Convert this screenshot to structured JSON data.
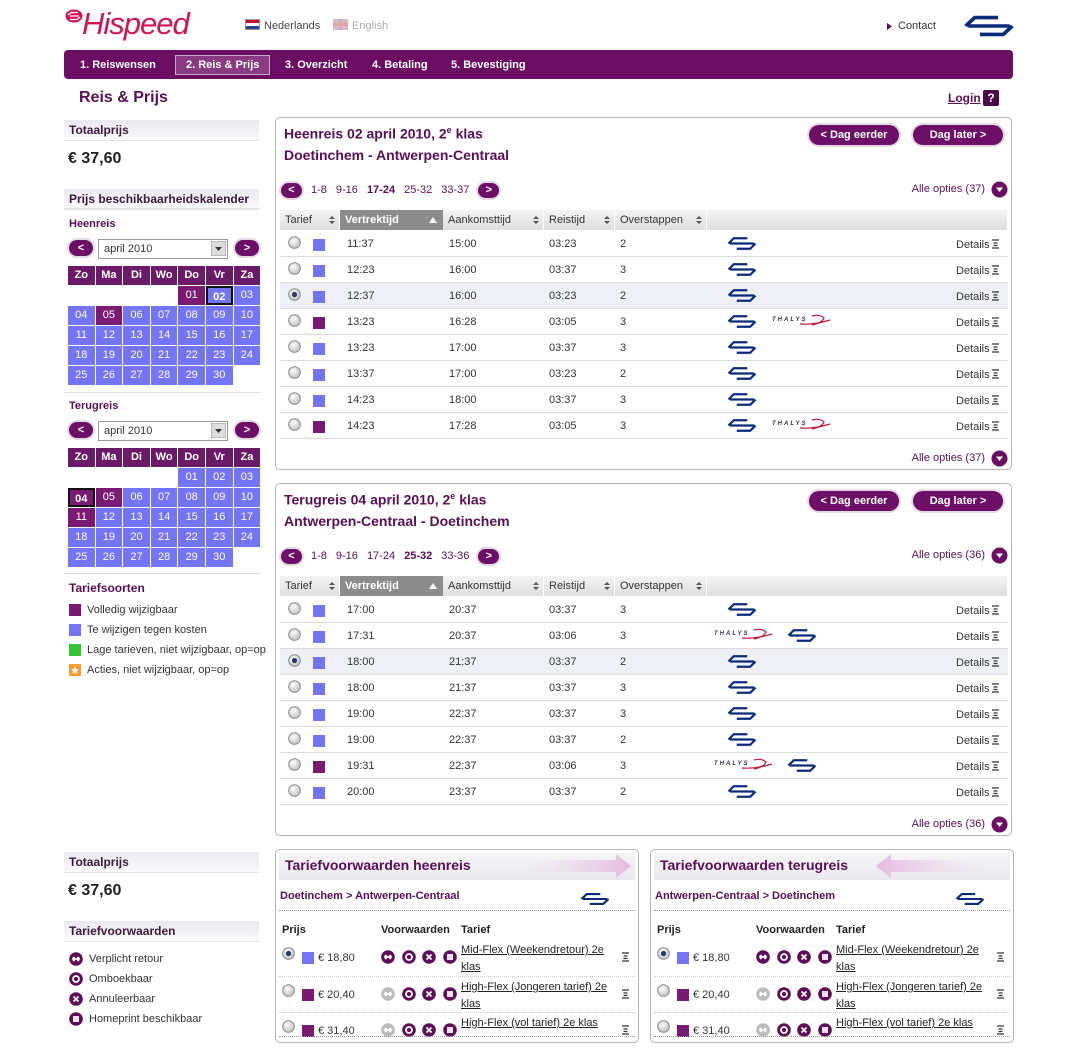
{
  "header": {
    "logo": "Hispeed",
    "languages": [
      "Nederlands",
      "English"
    ],
    "contact": "Contact"
  },
  "steps": {
    "items": [
      "1. Reiswensen",
      "2. Reis & Prijs",
      "3. Overzicht",
      "4. Betaling",
      "5. Bevestiging"
    ],
    "active": 1
  },
  "page_title": "Reis & Prijs",
  "login": "Login",
  "help": "?",
  "tariff_colors": {
    "full": "#7a1a72",
    "flex": "#7474f6",
    "low": "#33c433",
    "promo": "#ff9a2e"
  },
  "ui": {
    "prev": "<",
    "next": ">",
    "earlier": "< Dag eerder",
    "later": "Dag later >",
    "details": "Details",
    "thalys": "THALYS",
    "columns": [
      "Tarief",
      "Vertrektijd",
      "Aankomsttijd",
      "Reistijd",
      "Overstappen"
    ],
    "sorted_column": 1,
    "condition_columns": [
      "Prijs",
      "Voorwaarden",
      "Tarief"
    ]
  },
  "sidebar": {
    "total_label": "Totaalprijs",
    "total": "€ 37,60",
    "calendar_title": "Prijs beschikbaarheidskalender",
    "weekdays": [
      "Zo",
      "Ma",
      "Di",
      "Wo",
      "Do",
      "Vr",
      "Za"
    ],
    "calendars": [
      {
        "label": "Heenreis",
        "month": "april 2010",
        "weeks": [
          [
            null,
            null,
            null,
            null,
            "01",
            "02",
            "03"
          ],
          [
            "04",
            "05",
            "06",
            "07",
            "08",
            "09",
            "10"
          ],
          [
            "11",
            "12",
            "13",
            "14",
            "15",
            "16",
            "17"
          ],
          [
            "18",
            "19",
            "20",
            "21",
            "22",
            "23",
            "24"
          ],
          [
            "25",
            "26",
            "27",
            "28",
            "29",
            "30",
            null
          ]
        ],
        "kinds": [
          [
            null,
            null,
            null,
            null,
            "full",
            "flex-selected",
            "flex"
          ],
          [
            "flex",
            "full",
            "flex",
            "flex",
            "flex",
            "flex",
            "flex"
          ],
          [
            "flex",
            "flex",
            "flex",
            "flex",
            "flex",
            "flex",
            "flex"
          ],
          [
            "flex",
            "flex",
            "flex",
            "flex",
            "flex",
            "flex",
            "flex"
          ],
          [
            "flex",
            "flex",
            "flex",
            "flex",
            "flex",
            "flex",
            null
          ]
        ]
      },
      {
        "label": "Terugreis",
        "month": "april 2010",
        "weeks": [
          [
            null,
            null,
            null,
            null,
            "01",
            "02",
            "03"
          ],
          [
            "04",
            "05",
            "06",
            "07",
            "08",
            "09",
            "10"
          ],
          [
            "11",
            "12",
            "13",
            "14",
            "15",
            "16",
            "17"
          ],
          [
            "18",
            "19",
            "20",
            "21",
            "22",
            "23",
            "24"
          ],
          [
            "25",
            "26",
            "27",
            "28",
            "29",
            "30",
            null
          ]
        ],
        "kinds": [
          [
            null,
            null,
            null,
            null,
            "flex",
            "flex",
            "flex"
          ],
          [
            "full-selected",
            "full",
            "flex",
            "flex",
            "flex",
            "flex",
            "flex"
          ],
          [
            "full",
            "flex",
            "flex",
            "flex",
            "flex",
            "flex",
            "flex"
          ],
          [
            "flex",
            "flex",
            "flex",
            "flex",
            "flex",
            "flex",
            "flex"
          ],
          [
            "flex",
            "flex",
            "flex",
            "flex",
            "flex",
            "flex",
            null
          ]
        ]
      }
    ],
    "tariff_types_title": "Tariefsoorten",
    "tariff_types": [
      {
        "label": "Volledig wijzigbaar",
        "kind": "full"
      },
      {
        "label": "Te wijzigen tegen kosten",
        "kind": "flex"
      },
      {
        "label": "Lage tarieven, niet wijzigbaar, op=op",
        "kind": "low"
      },
      {
        "label": "Acties, niet wijzigbaar, op=op",
        "kind": "promo"
      }
    ],
    "conditions_title": "Tariefvoorwaarden",
    "conditions": [
      {
        "label": "Verplicht retour",
        "icon": "retour"
      },
      {
        "label": "Omboekbaar",
        "icon": "omboek"
      },
      {
        "label": "Annuleerbaar",
        "icon": "annuleer"
      },
      {
        "label": "Homeprint beschikbaar",
        "icon": "homeprint"
      }
    ]
  },
  "journeys": [
    {
      "title": [
        "Heenreis 02 april 2010, 2",
        "e",
        "klas"
      ],
      "route": "Doetinchem - Antwerpen-Centraal",
      "pages": [
        "1-8",
        "9-16",
        "17-24",
        "25-32",
        "33-37"
      ],
      "active_page": 2,
      "all_options": "Alle opties (37)",
      "rows": [
        {
          "tariff": "flex",
          "selected": false,
          "dep": "11:37",
          "arr": "15:00",
          "dur": "03:23",
          "transfers": 2,
          "operators": [
            "ns"
          ]
        },
        {
          "tariff": "flex",
          "selected": false,
          "dep": "12:23",
          "arr": "16:00",
          "dur": "03:37",
          "transfers": 3,
          "operators": [
            "ns"
          ]
        },
        {
          "tariff": "flex",
          "selected": true,
          "dep": "12:37",
          "arr": "16:00",
          "dur": "03:23",
          "transfers": 2,
          "operators": [
            "ns"
          ]
        },
        {
          "tariff": "full",
          "selected": false,
          "dep": "13:23",
          "arr": "16:28",
          "dur": "03:05",
          "transfers": 3,
          "operators": [
            "ns",
            "thalys"
          ]
        },
        {
          "tariff": "flex",
          "selected": false,
          "dep": "13:23",
          "arr": "17:00",
          "dur": "03:37",
          "transfers": 3,
          "operators": [
            "ns"
          ]
        },
        {
          "tariff": "flex",
          "selected": false,
          "dep": "13:37",
          "arr": "17:00",
          "dur": "03:23",
          "transfers": 2,
          "operators": [
            "ns"
          ]
        },
        {
          "tariff": "flex",
          "selected": false,
          "dep": "14:23",
          "arr": "18:00",
          "dur": "03:37",
          "transfers": 3,
          "operators": [
            "ns"
          ]
        },
        {
          "tariff": "full",
          "selected": false,
          "dep": "14:23",
          "arr": "17:28",
          "dur": "03:05",
          "transfers": 3,
          "operators": [
            "ns",
            "thalys"
          ]
        }
      ]
    },
    {
      "title": [
        "Terugreis 04 april 2010, 2",
        "e",
        "klas"
      ],
      "route": "Antwerpen-Centraal - Doetinchem",
      "pages": [
        "1-8",
        "9-16",
        "17-24",
        "25-32",
        "33-36"
      ],
      "active_page": 3,
      "all_options": "Alle opties (36)",
      "rows": [
        {
          "tariff": "flex",
          "selected": false,
          "dep": "17:00",
          "arr": "20:37",
          "dur": "03:37",
          "transfers": 3,
          "operators": [
            "ns"
          ]
        },
        {
          "tariff": "flex",
          "selected": false,
          "dep": "17:31",
          "arr": "20:37",
          "dur": "03:06",
          "transfers": 3,
          "operators": [
            "thalys",
            "ns"
          ]
        },
        {
          "tariff": "flex",
          "selected": true,
          "dep": "18:00",
          "arr": "21:37",
          "dur": "03:37",
          "transfers": 2,
          "operators": [
            "ns"
          ]
        },
        {
          "tariff": "flex",
          "selected": false,
          "dep": "18:00",
          "arr": "21:37",
          "dur": "03:37",
          "transfers": 3,
          "operators": [
            "ns"
          ]
        },
        {
          "tariff": "flex",
          "selected": false,
          "dep": "19:00",
          "arr": "22:37",
          "dur": "03:37",
          "transfers": 3,
          "operators": [
            "ns"
          ]
        },
        {
          "tariff": "flex",
          "selected": false,
          "dep": "19:00",
          "arr": "22:37",
          "dur": "03:37",
          "transfers": 2,
          "operators": [
            "ns"
          ]
        },
        {
          "tariff": "full",
          "selected": false,
          "dep": "19:31",
          "arr": "22:37",
          "dur": "03:06",
          "transfers": 3,
          "operators": [
            "thalys",
            "ns"
          ]
        },
        {
          "tariff": "flex",
          "selected": false,
          "dep": "20:00",
          "arr": "23:37",
          "dur": "03:37",
          "transfers": 2,
          "operators": [
            "ns"
          ]
        }
      ]
    }
  ],
  "condition_panels": [
    {
      "title": "Tariefvoorwaarden heenreis",
      "route": "Doetinchem > Antwerpen-Centraal",
      "arrow": "right",
      "rows": [
        {
          "price": "€ 18,80",
          "kind": "flex",
          "selected": true,
          "return_required": true,
          "name": "Mid-Flex (Weekendretour) 2e klas"
        },
        {
          "price": "€ 20,40",
          "kind": "full",
          "selected": false,
          "return_required": false,
          "name": "High-Flex (Jongeren tarief) 2e klas"
        },
        {
          "price": "€ 31,40",
          "kind": "full",
          "selected": false,
          "return_required": false,
          "name": "High-Flex (vol tarief) 2e klas"
        }
      ]
    },
    {
      "title": "Tariefvoorwaarden terugreis",
      "route": "Antwerpen-Centraal > Doetinchem",
      "arrow": "left",
      "rows": [
        {
          "price": "€ 18,80",
          "kind": "flex",
          "selected": true,
          "return_required": true,
          "name": "Mid-Flex (Weekendretour) 2e klas"
        },
        {
          "price": "€ 20,40",
          "kind": "full",
          "selected": false,
          "return_required": false,
          "name": "High-Flex (Jongeren tarief) 2e klas"
        },
        {
          "price": "€ 31,40",
          "kind": "full",
          "selected": false,
          "return_required": false,
          "name": "High-Flex (vol tarief) 2e klas"
        }
      ]
    }
  ]
}
